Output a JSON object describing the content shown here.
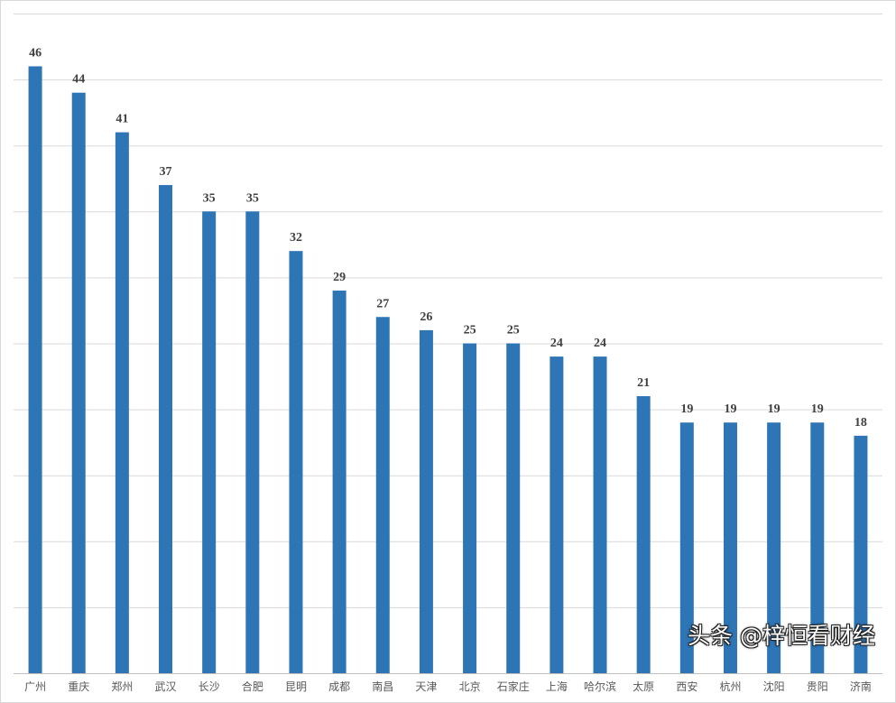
{
  "chart_data": {
    "type": "bar",
    "title": "",
    "xlabel": "",
    "ylabel": "",
    "ylim": [
      0,
      50
    ],
    "grid_step": 5,
    "grid": true,
    "y_tick_labels_shown": false,
    "data_labels": true,
    "bar_color": "#2e75b6",
    "categories": [
      "广州",
      "重庆",
      "郑州",
      "武汉",
      "长沙",
      "合肥",
      "昆明",
      "成都",
      "南昌",
      "天津",
      "北京",
      "石家庄",
      "上海",
      "哈尔滨",
      "太原",
      "西安",
      "杭州",
      "沈阳",
      "贵阳",
      "济南"
    ],
    "values": [
      46,
      44,
      41,
      37,
      35,
      35,
      32,
      29,
      27,
      26,
      25,
      25,
      24,
      24,
      21,
      19,
      19,
      19,
      19,
      18
    ]
  },
  "watermark": "头条 @梓恒看财经"
}
